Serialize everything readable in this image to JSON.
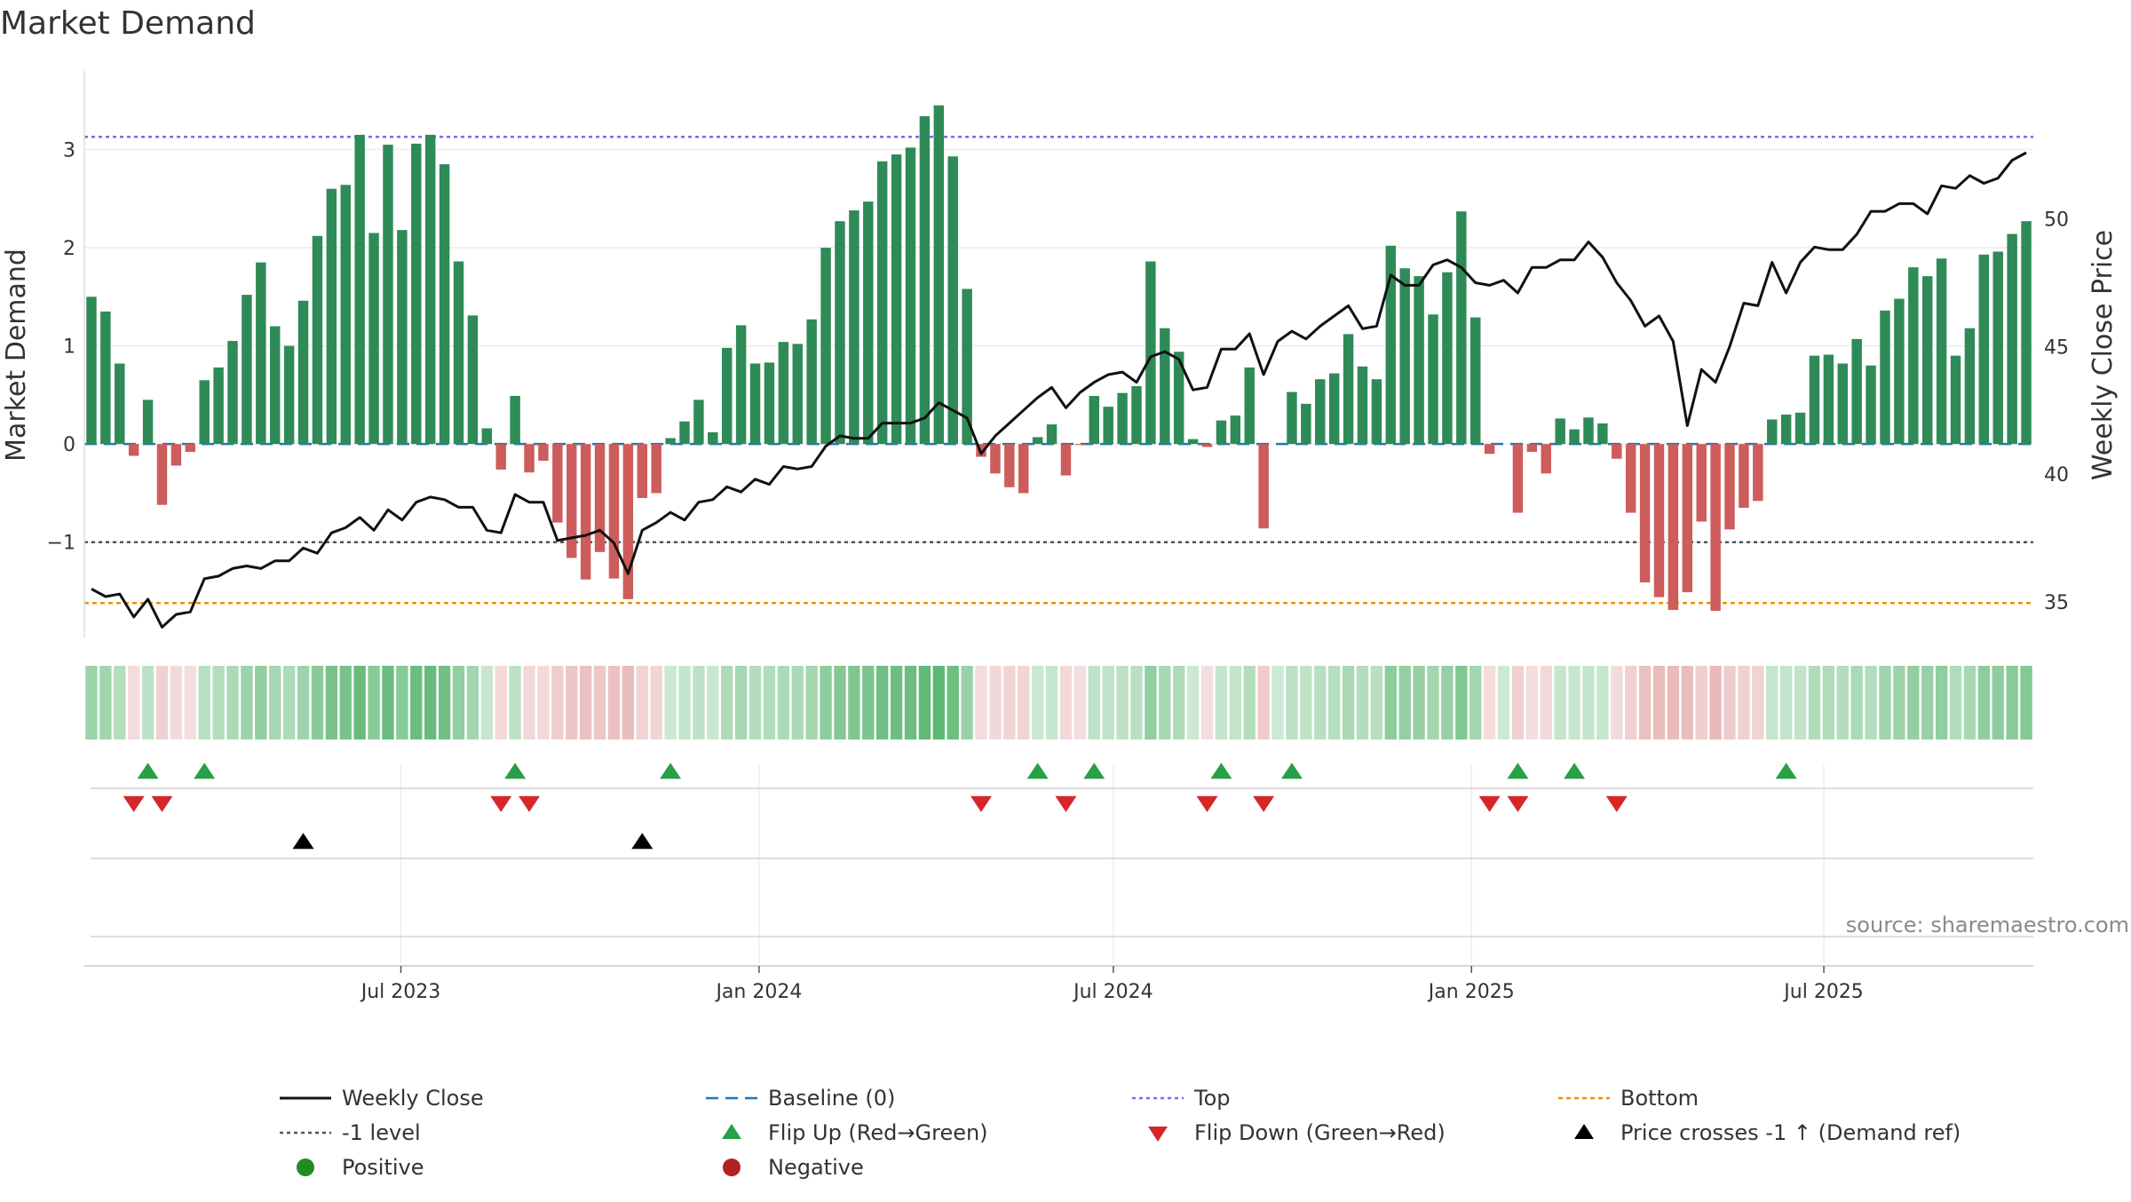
{
  "chart_data": {
    "type": "bar",
    "title": "Market Demand",
    "ylabel": "Market Demand",
    "y2label": "Weekly Close Price",
    "source": "source: sharemaestro.com",
    "ylim": [
      -1.97,
      3.8
    ],
    "y2lim": [
      33.6,
      55.8
    ],
    "y_ticks": [
      3,
      2,
      1,
      0,
      -1
    ],
    "y_tick_labels": [
      "3",
      "2",
      "1",
      "0",
      "−1"
    ],
    "y2_ticks": [
      50,
      45,
      40,
      35
    ],
    "y2_tick_labels": [
      "50",
      "45",
      "40",
      "35"
    ],
    "x_start": "2023-01-23",
    "x_end": "2025-10-13",
    "x_ticks": [
      {
        "date": "2023-07-01",
        "label": "Jul 2023"
      },
      {
        "date": "2024-01-01",
        "label": "Jan 2024"
      },
      {
        "date": "2024-07-01",
        "label": "Jul 2024"
      },
      {
        "date": "2025-01-01",
        "label": "Jan 2025"
      },
      {
        "date": "2025-07-01",
        "label": "Jul 2025"
      }
    ],
    "reference_lines": {
      "top": 3.13,
      "level": -1,
      "bottom": -1.62,
      "baseline": 0
    },
    "colors": {
      "positive_bar": "#2e8b57",
      "negative_bar": "#cd5c5c",
      "weekly_close": "#111111",
      "baseline": "#1f77b4",
      "top": "#7b68ee",
      "level": "#555555",
      "bottom": "#e69500",
      "flip_up": "#27a046",
      "flip_down": "#d62728",
      "price_cross": "#000000",
      "positive_dot": "#228b22",
      "negative_dot": "#b22222",
      "strip_positive": "#4caf64",
      "strip_negative": "#d98a8a"
    },
    "series": [
      {
        "name": "Market Demand",
        "values": [
          1.5,
          1.35,
          0.82,
          -0.12,
          0.45,
          -0.62,
          -0.22,
          -0.08,
          0.65,
          0.78,
          1.05,
          1.52,
          1.85,
          1.2,
          1.0,
          1.46,
          2.12,
          2.6,
          2.64,
          3.15,
          2.15,
          3.05,
          2.18,
          3.06,
          3.15,
          2.85,
          1.86,
          1.31,
          0.16,
          -0.26,
          0.49,
          -0.29,
          -0.17,
          -0.8,
          -1.16,
          -1.38,
          -1.1,
          -1.37,
          -1.58,
          -0.55,
          -0.5,
          0.06,
          0.23,
          0.45,
          0.12,
          0.98,
          1.21,
          0.82,
          0.83,
          1.04,
          1.02,
          1.27,
          2.0,
          2.27,
          2.38,
          2.47,
          2.88,
          2.95,
          3.02,
          3.34,
          3.45,
          2.93,
          1.58,
          -0.13,
          -0.3,
          -0.44,
          -0.5,
          0.07,
          0.2,
          -0.32,
          -0.01,
          0.49,
          0.38,
          0.52,
          0.59,
          1.86,
          1.18,
          0.94,
          0.05,
          -0.03,
          0.24,
          0.29,
          0.78,
          -0.86,
          0.0,
          0.53,
          0.41,
          0.66,
          0.72,
          1.12,
          0.79,
          0.66,
          2.02,
          1.79,
          1.71,
          1.32,
          1.75,
          2.37,
          1.29,
          -0.1,
          0.0,
          -0.7,
          -0.08,
          -0.3,
          0.26,
          0.15,
          0.27,
          0.21,
          -0.15,
          -0.7,
          -1.41,
          -1.56,
          -1.69,
          -1.51,
          -0.79,
          -1.7,
          -0.87,
          -0.65,
          -0.58,
          0.25,
          0.3,
          0.32,
          0.9,
          0.91,
          0.82,
          1.07,
          0.8,
          1.36,
          1.48,
          1.8,
          1.71,
          1.89,
          0.9,
          1.18,
          1.93,
          1.96,
          2.14,
          2.27
        ]
      },
      {
        "name": "Weekly Close",
        "values": [
          35.5,
          35.2,
          35.3,
          34.4,
          35.1,
          34.0,
          34.5,
          34.6,
          35.9,
          36.0,
          36.3,
          36.4,
          36.3,
          36.6,
          36.6,
          37.1,
          36.9,
          37.7,
          37.9,
          38.3,
          37.8,
          38.6,
          38.2,
          38.9,
          39.1,
          39.0,
          38.7,
          38.7,
          37.8,
          37.7,
          39.2,
          38.9,
          38.9,
          37.4,
          37.5,
          37.6,
          37.8,
          37.3,
          36.1,
          37.8,
          38.1,
          38.5,
          38.2,
          38.9,
          39.0,
          39.5,
          39.3,
          39.8,
          39.6,
          40.3,
          40.2,
          40.3,
          41.1,
          41.5,
          41.4,
          41.4,
          42.0,
          42.0,
          42.0,
          42.2,
          42.8,
          42.5,
          42.2,
          40.8,
          41.5,
          42.0,
          42.5,
          43.0,
          43.4,
          42.6,
          43.2,
          43.6,
          43.9,
          44.0,
          43.6,
          44.6,
          44.8,
          44.5,
          43.3,
          43.4,
          44.9,
          44.9,
          45.5,
          43.9,
          45.2,
          45.6,
          45.3,
          45.8,
          46.2,
          46.6,
          45.7,
          45.8,
          47.8,
          47.4,
          47.4,
          48.2,
          48.4,
          48.1,
          47.5,
          47.4,
          47.6,
          47.1,
          48.1,
          48.1,
          48.4,
          48.4,
          49.1,
          48.5,
          47.5,
          46.8,
          45.8,
          46.2,
          45.2,
          41.9,
          44.1,
          43.6,
          45.0,
          46.7,
          46.6,
          48.3,
          47.1,
          48.3,
          48.9,
          48.8,
          48.8,
          49.4,
          50.3,
          50.3,
          50.6,
          50.6,
          50.2,
          51.3,
          51.2,
          51.7,
          51.4,
          51.6,
          52.3,
          52.6
        ]
      }
    ],
    "flip_up_indices": [
      4,
      8,
      30,
      41,
      67,
      71,
      80,
      85,
      101,
      105,
      120
    ],
    "flip_down_indices": [
      3,
      5,
      29,
      31,
      63,
      69,
      79,
      83,
      99,
      101,
      108
    ],
    "price_cross_indices": [
      15,
      39
    ],
    "legend": {
      "columns": [
        [
          "Weekly Close",
          "-1 level",
          "Positive"
        ],
        [
          "Baseline (0)",
          "Flip Up (Red→Green)",
          "Negative"
        ],
        [
          "Top",
          "Flip Down (Green→Red)"
        ],
        [
          "Bottom",
          "Price crosses -1 ↑ (Demand ref)"
        ]
      ],
      "placement": "bottom"
    },
    "grid": true
  }
}
